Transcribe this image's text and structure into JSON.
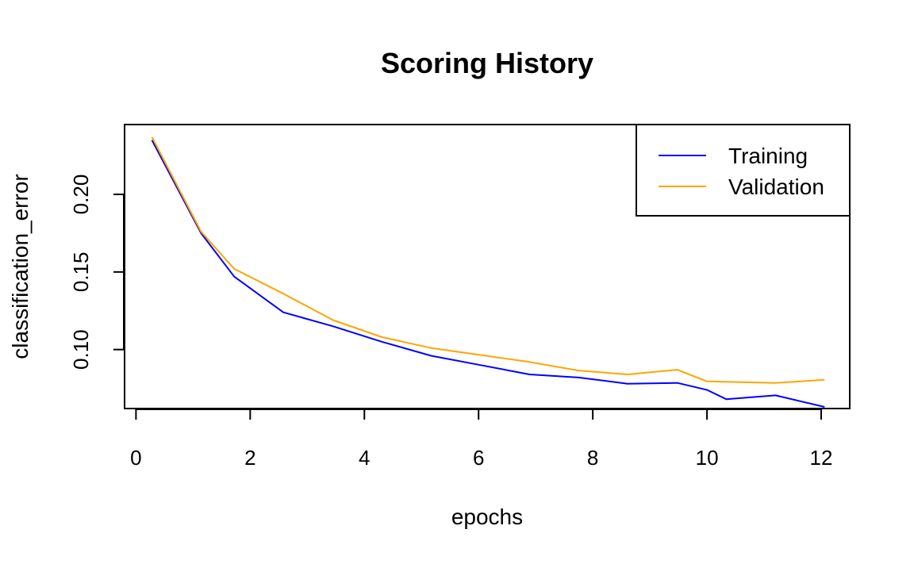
{
  "chart_data": {
    "type": "line",
    "title": "Scoring History",
    "xlabel": "epochs",
    "ylabel": "classification_error",
    "xlim": [
      -0.2,
      12.5
    ],
    "ylim": [
      0.062,
      0.245
    ],
    "xticks": [
      0,
      2,
      4,
      6,
      8,
      10,
      12
    ],
    "yticks": [
      0.1,
      0.15,
      0.2
    ],
    "ytick_labels": [
      "0.10",
      "0.15",
      "0.20"
    ],
    "grid": false,
    "legend_position": "top-right",
    "series": [
      {
        "name": "Training",
        "color": "#0000ff",
        "x": [
          0.28,
          1.14,
          1.72,
          2.58,
          3.45,
          4.31,
          5.17,
          6.03,
          6.89,
          7.75,
          8.61,
          9.48,
          10.0,
          10.34,
          11.2,
          12.06
        ],
        "y": [
          0.235,
          0.175,
          0.147,
          0.124,
          0.115,
          0.105,
          0.096,
          0.09,
          0.084,
          0.082,
          0.078,
          0.0785,
          0.074,
          0.068,
          0.0705,
          0.063
        ]
      },
      {
        "name": "Validation",
        "color": "#ffa500",
        "x": [
          0.28,
          1.14,
          1.72,
          2.58,
          3.45,
          4.31,
          5.17,
          6.03,
          6.89,
          7.75,
          8.61,
          9.48,
          10.0,
          11.2,
          12.06
        ],
        "y": [
          0.237,
          0.176,
          0.152,
          0.136,
          0.119,
          0.108,
          0.101,
          0.0965,
          0.092,
          0.0865,
          0.084,
          0.087,
          0.0795,
          0.0785,
          0.0805
        ]
      }
    ]
  }
}
